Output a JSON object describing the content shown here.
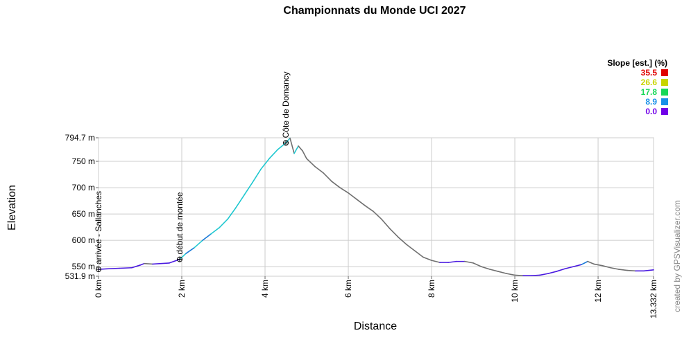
{
  "chart_data": {
    "type": "line",
    "title": "Championnats du Monde UCI 2027",
    "xlabel": "Distance",
    "ylabel": "Elevation",
    "ylim": [
      531.9,
      794.7
    ],
    "xlim": [
      0,
      13.332
    ],
    "x_ticks": [
      "0 km",
      "2 km",
      "4 km",
      "6 km",
      "8 km",
      "10 km",
      "12 km",
      "13.332 km"
    ],
    "x_tick_values": [
      0,
      2,
      4,
      6,
      8,
      10,
      12,
      13.332
    ],
    "y_ticks": [
      "531.9 m",
      "550 m",
      "600 m",
      "650 m",
      "700 m",
      "750 m",
      "794.7 m"
    ],
    "y_tick_values": [
      531.9,
      550,
      600,
      650,
      700,
      750,
      794.7
    ],
    "grid": true,
    "legend": {
      "title": "Slope [est.] (%)",
      "placement": "top-right",
      "entries": [
        {
          "value": "35.5",
          "color": "#e00000"
        },
        {
          "value": "26.6",
          "color": "#c8d400"
        },
        {
          "value": "17.8",
          "color": "#18d858"
        },
        {
          "value": "8.9",
          "color": "#1890e8"
        },
        {
          "value": "0.0",
          "color": "#7000e8"
        }
      ]
    },
    "waypoints": [
      {
        "x": 0.0,
        "y": 545,
        "label": "arrivée - Sallanches"
      },
      {
        "x": 1.95,
        "y": 564,
        "label": "début de montée"
      },
      {
        "x": 4.5,
        "y": 785,
        "label": "Côte de Domancy"
      }
    ],
    "series": [
      {
        "x": [
          0.0,
          0.2,
          0.5,
          0.8,
          1.0,
          1.1,
          1.3,
          1.5,
          1.7,
          1.95,
          2.1,
          2.3,
          2.5,
          2.7,
          2.9,
          3.1,
          3.3,
          3.5,
          3.7,
          3.9,
          4.1,
          4.3,
          4.5,
          4.6,
          4.7,
          4.8,
          4.9,
          5.0,
          5.2,
          5.4,
          5.6,
          5.8,
          6.0,
          6.2,
          6.4,
          6.6,
          6.8,
          7.0,
          7.2,
          7.4,
          7.6,
          7.8,
          8.0,
          8.2,
          8.4,
          8.6,
          8.8,
          9.0,
          9.2,
          9.4,
          9.6,
          9.8,
          10.0,
          10.2,
          10.4,
          10.6,
          10.8,
          11.0,
          11.2,
          11.4,
          11.6,
          11.75,
          11.9,
          12.1,
          12.3,
          12.5,
          12.7,
          12.9,
          13.1,
          13.332
        ],
        "y": [
          545,
          546,
          547,
          548,
          553,
          556,
          555,
          556,
          557,
          564,
          575,
          586,
          600,
          612,
          624,
          640,
          662,
          686,
          710,
          735,
          755,
          772,
          785,
          794,
          765,
          779,
          770,
          755,
          740,
          728,
          712,
          700,
          690,
          678,
          666,
          655,
          640,
          622,
          606,
          592,
          580,
          568,
          562,
          558,
          558,
          560,
          560,
          557,
          550,
          545,
          541,
          537,
          534,
          533,
          533,
          534,
          537,
          541,
          546,
          550,
          554,
          560,
          555,
          552,
          548,
          545,
          543,
          542,
          542,
          544
        ]
      }
    ]
  },
  "credit": "created by GPSVisualizer.com"
}
